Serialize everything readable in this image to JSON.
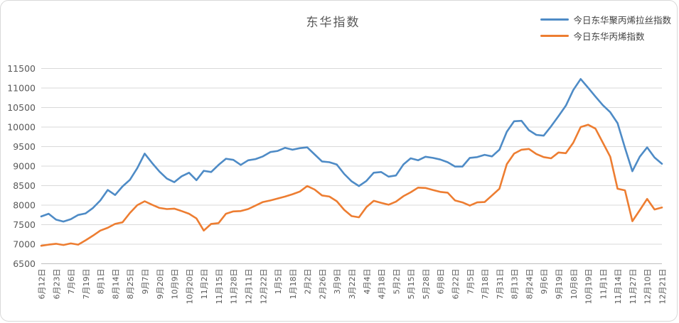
{
  "title": "东华指数",
  "colors": {
    "series1": "#4e8bc6",
    "series2": "#ed7d31",
    "grid": "#d9d9d9",
    "axis_line": "#bfbfbf",
    "tick_text": "#595959",
    "legend_text": "#404040",
    "frame_border": "#d9d9d9"
  },
  "chart_data": {
    "type": "line",
    "title": "东华指数",
    "xlabel": "",
    "ylabel": "",
    "ylim": [
      6500,
      11500
    ],
    "y_ticks": [
      6500,
      7000,
      7500,
      8000,
      8500,
      9000,
      9500,
      10000,
      10500,
      11000,
      11500
    ],
    "grid": true,
    "legend_position": "top-right",
    "x_labels_rotation": -90,
    "points_per_label": 2,
    "x_labels": [
      "6月12日",
      "6月23日",
      "7月6日",
      "7月19日",
      "8月1日",
      "8月14日",
      "8月25日",
      "9月7日",
      "9月20日",
      "10月9日",
      "10月20日",
      "11月2日",
      "11月15日",
      "11月28日",
      "12月11日",
      "12月22日",
      "1月5日",
      "1月18日",
      "2月2日",
      "2月26日",
      "3月9日",
      "3月22日",
      "4月4日",
      "4月18日",
      "5月2日",
      "5月15日",
      "5月28日",
      "6月8日",
      "6月22日",
      "7月5日",
      "7月18日",
      "7月31日",
      "8月13日",
      "8月24日",
      "9月6日",
      "9月19日",
      "10月8日",
      "10月19日",
      "11月1日",
      "11月14日",
      "11月27日",
      "12月10日",
      "12月21日"
    ],
    "series": [
      {
        "name": "今日东华聚丙烯拉丝指数",
        "color": "#4e8bc6",
        "values": [
          7710,
          7780,
          7630,
          7580,
          7640,
          7750,
          7790,
          7930,
          8120,
          8390,
          8260,
          8480,
          8650,
          8950,
          9320,
          9080,
          8860,
          8680,
          8590,
          8740,
          8830,
          8640,
          8880,
          8850,
          9030,
          9190,
          9160,
          9030,
          9150,
          9180,
          9250,
          9360,
          9390,
          9470,
          9420,
          9460,
          9480,
          9300,
          9120,
          9100,
          9040,
          8800,
          8610,
          8490,
          8620,
          8830,
          8850,
          8730,
          8760,
          9040,
          9200,
          9150,
          9240,
          9210,
          9170,
          9100,
          8990,
          8990,
          9210,
          9230,
          9290,
          9250,
          9420,
          9880,
          10150,
          10160,
          9920,
          9800,
          9780,
          10020,
          10280,
          10550,
          10950,
          11230,
          11010,
          10780,
          10560,
          10380,
          10100,
          9470,
          8870,
          9240,
          9480,
          9220,
          9060
        ]
      },
      {
        "name": "今日东华丙烯指数",
        "color": "#ed7d31",
        "values": [
          6960,
          6990,
          7010,
          6980,
          7020,
          6990,
          7100,
          7220,
          7350,
          7420,
          7520,
          7560,
          7800,
          8000,
          8100,
          8010,
          7930,
          7900,
          7910,
          7850,
          7780,
          7660,
          7350,
          7520,
          7540,
          7780,
          7840,
          7850,
          7900,
          7990,
          8080,
          8120,
          8170,
          8220,
          8280,
          8350,
          8490,
          8400,
          8250,
          8220,
          8100,
          7880,
          7720,
          7690,
          7950,
          8110,
          8060,
          8010,
          8090,
          8230,
          8330,
          8450,
          8440,
          8390,
          8340,
          8320,
          8120,
          8070,
          7990,
          8070,
          8080,
          8250,
          8420,
          9050,
          9320,
          9420,
          9440,
          9310,
          9230,
          9200,
          9350,
          9330,
          9600,
          10000,
          10060,
          9960,
          9600,
          9240,
          8420,
          8380,
          7590,
          7870,
          8160,
          7890,
          7940
        ]
      }
    ]
  }
}
